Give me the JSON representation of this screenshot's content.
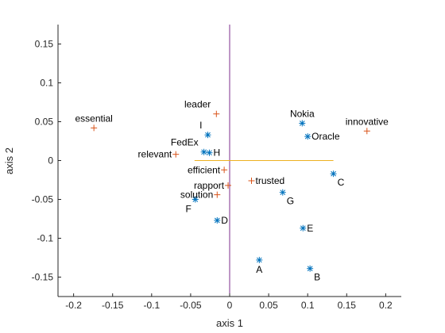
{
  "chart_data": {
    "type": "scatter",
    "title": "",
    "xlabel": "axis 1",
    "ylabel": "axis 2",
    "xlim": [
      -0.22,
      0.22
    ],
    "ylim": [
      -0.175,
      0.175
    ],
    "xticks": [
      -0.2,
      -0.15,
      -0.1,
      -0.05,
      0,
      0.05,
      0.1,
      0.15,
      0.2
    ],
    "xtick_labels": [
      "-0.2",
      "-0.15",
      "-0.1",
      "-0.05",
      "0",
      "0.05",
      "0.1",
      "0.15",
      "0.2"
    ],
    "yticks": [
      -0.15,
      -0.1,
      -0.05,
      0,
      0.05,
      0.1,
      0.15
    ],
    "ytick_labels": [
      "-0.15",
      "-0.1",
      "-0.05",
      "0",
      "0.05",
      "0.1",
      "0.15"
    ],
    "grid": false,
    "colors": {
      "star_series": "#0072BD",
      "plus_series": "#D95319",
      "vertical_line": "#7E2F8E",
      "horizontal_line": "#EDB120",
      "axis": "#262626"
    },
    "reference_lines": [
      {
        "orientation": "vertical",
        "x": 0,
        "y_range": [
          -0.175,
          0.175
        ],
        "color": "#7E2F8E"
      },
      {
        "orientation": "horizontal",
        "y": 0,
        "x_range": [
          -0.045,
          0.133
        ],
        "color": "#EDB120"
      }
    ],
    "series": [
      {
        "marker": "star",
        "color": "#0072BD",
        "points": [
          {
            "label": "Nokia",
            "x": 0.093,
            "y": 0.048,
            "label_pos": "above"
          },
          {
            "label": "Oracle",
            "x": 0.1,
            "y": 0.031,
            "label_pos": "right"
          },
          {
            "label": "C",
            "x": 0.133,
            "y": -0.017,
            "label_pos": "below-right"
          },
          {
            "label": "G",
            "x": 0.068,
            "y": -0.041,
            "label_pos": "below-right"
          },
          {
            "label": "E",
            "x": 0.094,
            "y": -0.087,
            "label_pos": "right"
          },
          {
            "label": "A",
            "x": 0.038,
            "y": -0.128,
            "label_pos": "below"
          },
          {
            "label": "B",
            "x": 0.103,
            "y": -0.139,
            "label_pos": "below-right"
          },
          {
            "label": "I",
            "x": -0.028,
            "y": 0.033,
            "label_pos": "above-left"
          },
          {
            "label": "FedEx",
            "x": -0.033,
            "y": 0.011,
            "label_pos": "above-left"
          },
          {
            "label": "H",
            "x": -0.026,
            "y": 0.01,
            "label_pos": "right"
          },
          {
            "label": "F",
            "x": -0.044,
            "y": -0.05,
            "label_pos": "below-left"
          },
          {
            "label": "D",
            "x": -0.016,
            "y": -0.077,
            "label_pos": "right"
          }
        ]
      },
      {
        "marker": "plus",
        "color": "#D95319",
        "points": [
          {
            "label": "essential",
            "x": -0.174,
            "y": 0.042,
            "label_pos": "above"
          },
          {
            "label": "leader",
            "x": -0.017,
            "y": 0.06,
            "label_pos": "above-left"
          },
          {
            "label": "innovative",
            "x": 0.176,
            "y": 0.038,
            "label_pos": "above"
          },
          {
            "label": "relevant",
            "x": -0.069,
            "y": 0.008,
            "label_pos": "left"
          },
          {
            "label": "efficient",
            "x": -0.007,
            "y": -0.012,
            "label_pos": "left"
          },
          {
            "label": "rapport",
            "x": -0.002,
            "y": -0.032,
            "label_pos": "left"
          },
          {
            "label": "trusted",
            "x": 0.028,
            "y": -0.026,
            "label_pos": "right"
          },
          {
            "label": "solution",
            "x": -0.016,
            "y": -0.044,
            "label_pos": "left"
          }
        ]
      }
    ]
  }
}
